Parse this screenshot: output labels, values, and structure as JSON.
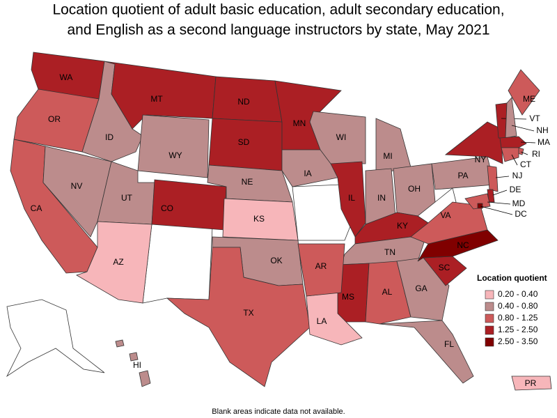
{
  "title": [
    "Location quotient of adult basic education, adult secondary education,",
    "and English as a second language instructors by state, May 2021"
  ],
  "legend": {
    "title": "Location quotient",
    "items": [
      {
        "label": "0.20 - 0.40",
        "color": "#f7b6ba"
      },
      {
        "label": "0.40 - 0.80",
        "color": "#bc8c8c"
      },
      {
        "label": "0.80 - 1.25",
        "color": "#cd5a5a"
      },
      {
        "label": "1.25 - 2.50",
        "color": "#ab1f24"
      },
      {
        "label": "2.50 - 3.50",
        "color": "#800000"
      }
    ]
  },
  "states": [
    {
      "label": "WA",
      "color": "#ab1f24"
    },
    {
      "label": "OR",
      "color": "#cd5a5a"
    },
    {
      "label": "CA",
      "color": "#cd5a5a"
    },
    {
      "label": "NV",
      "color": "#bc8c8c"
    },
    {
      "label": "ID",
      "color": "#bc8c8c"
    },
    {
      "label": "MT",
      "color": "#ab1f24"
    },
    {
      "label": "WY",
      "color": "#bc8c8c"
    },
    {
      "label": "UT",
      "color": "#bc8c8c"
    },
    {
      "label": "AZ",
      "color": "#f7b6ba"
    },
    {
      "label": "CO",
      "color": "#ab1f24"
    },
    {
      "label": "ND",
      "color": "#ab1f24"
    },
    {
      "label": "SD",
      "color": "#ab1f24"
    },
    {
      "label": "NE",
      "color": "#bc8c8c"
    },
    {
      "label": "KS",
      "color": "#f7b6ba"
    },
    {
      "label": "OK",
      "color": "#bc8c8c"
    },
    {
      "label": "TX",
      "color": "#cd5a5a"
    },
    {
      "label": "MN",
      "color": "#ab1f24"
    },
    {
      "label": "IA",
      "color": "#bc8c8c"
    },
    {
      "label": "WI",
      "color": "#bc8c8c"
    },
    {
      "label": "IL",
      "color": "#ab1f24"
    },
    {
      "label": "MI",
      "color": "#bc8c8c"
    },
    {
      "label": "IN",
      "color": "#bc8c8c"
    },
    {
      "label": "OH",
      "color": "#bc8c8c"
    },
    {
      "label": "KY",
      "color": "#ab1f24"
    },
    {
      "label": "TN",
      "color": "#bc8c8c"
    },
    {
      "label": "MS",
      "color": "#ab1f24"
    },
    {
      "label": "AL",
      "color": "#cd5a5a"
    },
    {
      "label": "GA",
      "color": "#bc8c8c"
    },
    {
      "label": "FL",
      "color": "#bc8c8c"
    },
    {
      "label": "SC",
      "color": "#ab1f24"
    },
    {
      "label": "NC",
      "color": "#800000"
    },
    {
      "label": "VA",
      "color": "#cd5a5a"
    },
    {
      "label": "PA",
      "color": "#bc8c8c"
    },
    {
      "label": "NY",
      "color": "#ab1f24"
    },
    {
      "label": "ME",
      "color": "#cd5a5a"
    },
    {
      "label": "VT",
      "color": "#ab1f24"
    },
    {
      "label": "NH",
      "color": "#bc8c8c"
    },
    {
      "label": "MA",
      "color": "#ab1f24"
    },
    {
      "label": "RI",
      "color": "#cd5a5a"
    },
    {
      "label": "CT",
      "color": "#cd5a5a"
    },
    {
      "label": "NJ",
      "color": "#cd5a5a"
    },
    {
      "label": "DE",
      "color": "#ab1f24"
    },
    {
      "label": "MD",
      "color": "#cd5a5a"
    },
    {
      "label": "DC",
      "color": "#800000"
    },
    {
      "label": "LA",
      "color": "#f7b6ba"
    },
    {
      "label": "AR",
      "color": "#cd5a5a"
    },
    {
      "label": "HI",
      "color": "#bc8c8c"
    },
    {
      "label": "PR",
      "color": "#f7b6ba"
    }
  ],
  "footnote": "Blank areas indicate data not available."
}
